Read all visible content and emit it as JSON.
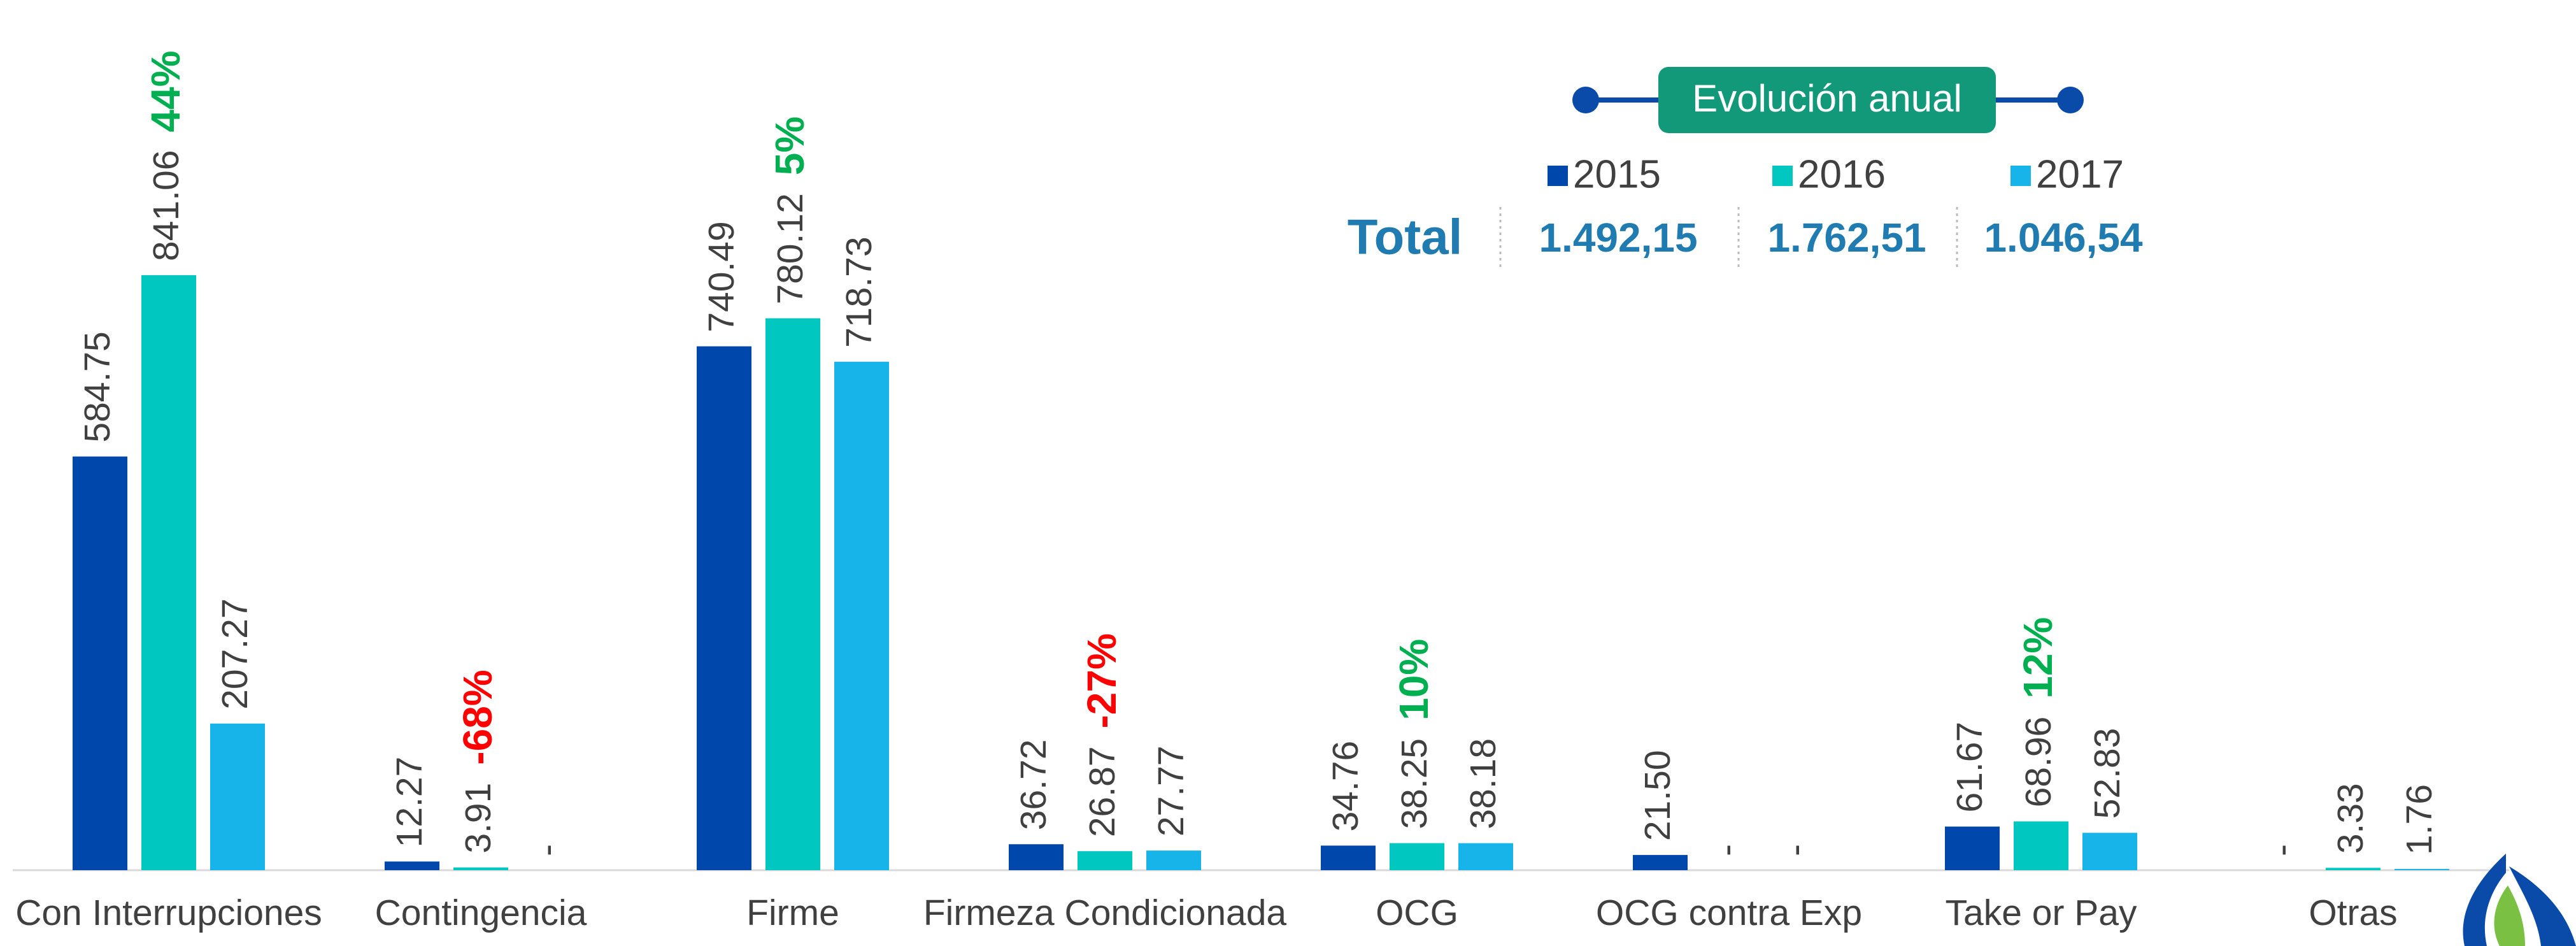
{
  "chart_data": {
    "type": "bar",
    "categories": [
      "Con Interrupciones",
      "Contingencia",
      "Firme",
      "Firmeza Condicionada",
      "OCG",
      "OCG contra Exp",
      "Take or Pay",
      "Otras"
    ],
    "series": [
      {
        "name": "2015",
        "color": "#0047ab",
        "values": [
          584.75,
          12.27,
          740.49,
          36.72,
          34.76,
          21.5,
          61.67,
          null
        ],
        "value_labels": [
          "584.75",
          "12.27",
          "740.49",
          "36.72",
          "34.76",
          "21.50",
          "61.67",
          "-"
        ]
      },
      {
        "name": "2016",
        "color": "#00c8c0",
        "values": [
          841.06,
          3.91,
          780.12,
          26.87,
          38.25,
          null,
          68.96,
          3.33
        ],
        "value_labels": [
          "841.06",
          "3.91",
          "780.12",
          "26.87",
          "38.25",
          "-",
          "68.96",
          "3.33"
        ]
      },
      {
        "name": "2017",
        "color": "#16b4e8",
        "values": [
          207.27,
          null,
          718.73,
          27.77,
          38.18,
          null,
          52.83,
          1.76
        ],
        "value_labels": [
          "207.27",
          "-",
          "718.73",
          "27.77",
          "38.18",
          "-",
          "52.83",
          "1.76"
        ]
      }
    ],
    "changes": [
      44,
      -68,
      5,
      -27,
      10,
      null,
      12,
      null
    ],
    "change_labels": [
      "44%",
      "-68%",
      "5%",
      "-27%",
      "10%",
      null,
      "12%",
      null
    ],
    "positive_color": "#00b050",
    "negative_color": "#ff0000",
    "ylim": [
      0,
      1230
    ],
    "legend_title": "Evolución anual",
    "totals": {
      "label": "Total",
      "values": [
        "1.492,15",
        "1.762,51",
        "1.046,54"
      ]
    }
  }
}
